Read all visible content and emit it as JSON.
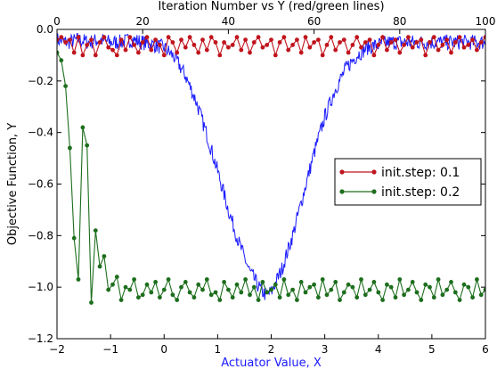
{
  "chart_data": {
    "type": "line",
    "title_top": "Iteration Number vs Y (red/green lines)",
    "xlabel": "Actuator Value, X",
    "ylabel": "Objective Function, Y",
    "xlim": [
      -2,
      6
    ],
    "ylim": [
      -1.2,
      0.0
    ],
    "x2lim": [
      0,
      100
    ],
    "x_ticks": [
      "−2",
      "−1",
      "0",
      "1",
      "2",
      "3",
      "4",
      "5",
      "6"
    ],
    "x2_ticks": [
      "0",
      "20",
      "40",
      "60",
      "80",
      "100"
    ],
    "y_ticks": [
      "0.0",
      "−0.2",
      "−0.4",
      "−0.6",
      "−0.8",
      "−1.0",
      "−1.2"
    ],
    "grid": false,
    "legend": {
      "placement": "center-right",
      "entries": [
        {
          "label": "init.step: 0.1",
          "color": "#c0141c"
        },
        {
          "label": "init.step: 0.2",
          "color": "#1d6e1d"
        }
      ]
    },
    "series": [
      {
        "axis": "bottom (Actuator Value, X)",
        "color": "#1a1aff",
        "style": "line",
        "x": [
          -2.0,
          -1.8,
          -1.6,
          -1.4,
          -1.2,
          -1.0,
          -0.8,
          -0.6,
          -0.4,
          -0.2,
          0.0,
          0.2,
          0.4,
          0.6,
          0.8,
          1.0,
          1.2,
          1.4,
          1.6,
          1.8,
          1.9,
          2.0,
          2.2,
          2.4,
          2.6,
          2.8,
          3.0,
          3.2,
          3.4,
          3.6,
          3.8,
          4.0,
          4.2,
          4.4,
          4.6,
          4.8,
          5.0,
          5.2,
          5.4,
          5.6,
          5.8,
          6.0
        ],
        "y": [
          -0.04,
          -0.05,
          -0.04,
          -0.05,
          -0.04,
          -0.05,
          -0.05,
          -0.04,
          -0.05,
          -0.06,
          -0.07,
          -0.11,
          -0.18,
          -0.28,
          -0.41,
          -0.55,
          -0.7,
          -0.83,
          -0.94,
          -1.01,
          -1.03,
          -1.02,
          -0.93,
          -0.8,
          -0.64,
          -0.48,
          -0.34,
          -0.23,
          -0.15,
          -0.1,
          -0.07,
          -0.06,
          -0.05,
          -0.05,
          -0.05,
          -0.05,
          -0.05,
          -0.05,
          -0.05,
          -0.05,
          -0.05,
          -0.05
        ]
      },
      {
        "name": "init.step: 0.1",
        "axis": "top (Iteration Number)",
        "color": "#c0141c",
        "style": "line+markers",
        "x": [
          0,
          1,
          2,
          3,
          4,
          5,
          6,
          7,
          8,
          9,
          10,
          11,
          12,
          13,
          14,
          15,
          16,
          17,
          18,
          19,
          20,
          21,
          22,
          23,
          24,
          25,
          26,
          27,
          28,
          29,
          30,
          31,
          32,
          33,
          34,
          35,
          36,
          37,
          38,
          39,
          40,
          41,
          42,
          43,
          44,
          45,
          46,
          47,
          48,
          49,
          50,
          51,
          52,
          53,
          54,
          55,
          56,
          57,
          58,
          59,
          60,
          61,
          62,
          63,
          64,
          65,
          66,
          67,
          68,
          69,
          70,
          71,
          72,
          73,
          74,
          75,
          76,
          77,
          78,
          79,
          80,
          81,
          82,
          83,
          84,
          85,
          86,
          87,
          88,
          89,
          90,
          91,
          92,
          93,
          94,
          95,
          96,
          97,
          98,
          99,
          100
        ],
        "y": [
          -0.04,
          -0.03,
          -0.05,
          -0.04,
          -0.09,
          -0.03,
          -0.1,
          -0.06,
          -0.04,
          -0.1,
          -0.05,
          -0.03,
          -0.07,
          -0.08,
          -0.1,
          -0.04,
          -0.08,
          -0.03,
          -0.06,
          -0.09,
          -0.05,
          -0.03,
          -0.08,
          -0.04,
          -0.06,
          -0.1,
          -0.03,
          -0.05,
          -0.09,
          -0.04,
          -0.07,
          -0.03,
          -0.06,
          -0.09,
          -0.04,
          -0.08,
          -0.03,
          -0.05,
          -0.1,
          -0.05,
          -0.07,
          -0.06,
          -0.03,
          -0.08,
          -0.04,
          -0.09,
          -0.05,
          -0.03,
          -0.07,
          -0.06,
          -0.04,
          -0.1,
          -0.05,
          -0.03,
          -0.08,
          -0.06,
          -0.04,
          -0.09,
          -0.03,
          -0.07,
          -0.05,
          -0.04,
          -0.1,
          -0.06,
          -0.03,
          -0.08,
          -0.05,
          -0.04,
          -0.09,
          -0.06,
          -0.03,
          -0.07,
          -0.05,
          -0.04,
          -0.1,
          -0.06,
          -0.03,
          -0.08,
          -0.05,
          -0.04,
          -0.09,
          -0.06,
          -0.03,
          -0.07,
          -0.05,
          -0.04,
          -0.1,
          -0.05,
          -0.03,
          -0.08,
          -0.06,
          -0.04,
          -0.09,
          -0.05,
          -0.03,
          -0.07,
          -0.06,
          -0.04,
          -0.08,
          -0.05,
          -0.03
        ]
      },
      {
        "name": "init.step: 0.2",
        "axis": "top (Iteration Number)",
        "color": "#1d6e1d",
        "style": "line+markers",
        "x": [
          0,
          1,
          2,
          3,
          4,
          5,
          6,
          7,
          8,
          9,
          10,
          11,
          12,
          13,
          14,
          15,
          16,
          17,
          18,
          19,
          20,
          21,
          22,
          23,
          24,
          25,
          26,
          27,
          28,
          29,
          30,
          31,
          32,
          33,
          34,
          35,
          36,
          37,
          38,
          39,
          40,
          41,
          42,
          43,
          44,
          45,
          46,
          47,
          48,
          49,
          50,
          51,
          52,
          53,
          54,
          55,
          56,
          57,
          58,
          59,
          60,
          61,
          62,
          63,
          64,
          65,
          66,
          67,
          68,
          69,
          70,
          71,
          72,
          73,
          74,
          75,
          76,
          77,
          78,
          79,
          80,
          81,
          82,
          83,
          84,
          85,
          86,
          87,
          88,
          89,
          90,
          91,
          92,
          93,
          94,
          95,
          96,
          97,
          98,
          99,
          100
        ],
        "y": [
          -0.09,
          -0.12,
          -0.22,
          -0.46,
          -0.81,
          -0.97,
          -0.38,
          -0.45,
          -1.06,
          -0.78,
          -0.92,
          -0.88,
          -1.01,
          -0.99,
          -0.96,
          -1.05,
          -1.0,
          -1.01,
          -0.97,
          -1.04,
          -1.03,
          -0.99,
          -1.02,
          -0.98,
          -1.04,
          -1.01,
          -0.97,
          -1.03,
          -1.05,
          -1.0,
          -0.98,
          -1.02,
          -1.04,
          -0.99,
          -1.01,
          -0.97,
          -1.03,
          -1.02,
          -1.05,
          -0.98,
          -1.01,
          -1.04,
          -0.99,
          -1.02,
          -0.97,
          -1.03,
          -1.0,
          -1.05,
          -0.98,
          -1.02,
          -1.01,
          -0.99,
          -1.04,
          -0.97,
          -1.03,
          -1.01,
          -1.05,
          -0.98,
          -1.02,
          -1.0,
          -0.99,
          -1.04,
          -0.97,
          -1.03,
          -1.01,
          -0.98,
          -1.05,
          -1.02,
          -0.99,
          -1.0,
          -1.04,
          -0.97,
          -1.03,
          -1.01,
          -0.98,
          -1.02,
          -1.05,
          -0.99,
          -1.0,
          -1.04,
          -0.97,
          -1.03,
          -1.01,
          -0.98,
          -1.02,
          -1.05,
          -0.99,
          -1.0,
          -1.04,
          -0.97,
          -1.03,
          -1.01,
          -0.98,
          -1.02,
          -1.05,
          -0.99,
          -1.0,
          -1.04,
          -0.97,
          -1.03,
          -1.01
        ]
      }
    ]
  }
}
